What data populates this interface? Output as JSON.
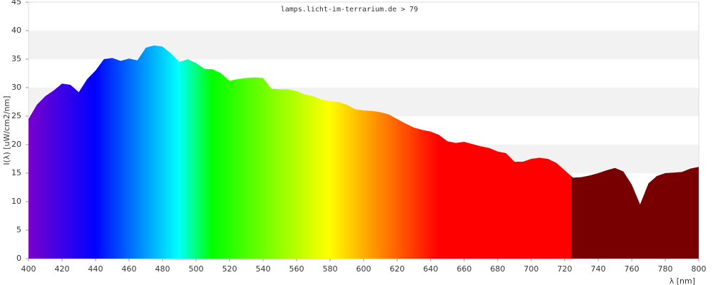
{
  "chart_data": {
    "type": "area",
    "title": "lamps.licht-im-terrarium.de > 79",
    "x_label": "λ [nm]",
    "y_label": "I(λ)  [uW/cm2/nm]",
    "x": [
      400,
      405,
      410,
      415,
      420,
      425,
      430,
      435,
      440,
      445,
      450,
      455,
      460,
      465,
      470,
      475,
      480,
      485,
      490,
      495,
      500,
      505,
      510,
      515,
      520,
      525,
      530,
      535,
      540,
      545,
      550,
      555,
      560,
      565,
      570,
      575,
      580,
      585,
      590,
      595,
      600,
      605,
      610,
      615,
      620,
      625,
      630,
      635,
      640,
      645,
      650,
      655,
      660,
      665,
      670,
      675,
      680,
      685,
      690,
      695,
      700,
      705,
      710,
      715,
      720,
      725,
      730,
      735,
      740,
      745,
      750,
      755,
      760,
      765,
      770,
      775,
      780,
      785,
      790,
      795,
      800
    ],
    "series": [
      {
        "name": "I(λ)",
        "values": [
          24.5,
          27,
          28.5,
          29.5,
          30.7,
          30.5,
          29.2,
          31.5,
          33,
          35,
          35.2,
          34.7,
          35.1,
          34.8,
          37,
          37.4,
          37.2,
          36,
          34.5,
          35,
          34.3,
          33.3,
          33.2,
          32.5,
          31.2,
          31.5,
          31.7,
          31.8,
          31.7,
          29.8,
          29.7,
          29.7,
          29.4,
          28.8,
          28.5,
          27.9,
          27.6,
          27.5,
          27,
          26.2,
          26,
          25.9,
          25.7,
          25.3,
          24.5,
          23.7,
          23,
          22.6,
          22.3,
          21.7,
          20.6,
          20.3,
          20.5,
          20.1,
          19.7,
          19.4,
          18.8,
          18.5,
          17,
          17,
          17.5,
          17.7,
          17.5,
          16.8,
          15.5,
          14.2,
          14.3,
          14.6,
          15,
          15.5,
          15.9,
          15.3,
          13,
          9.5,
          13.2,
          14.5,
          15,
          15.1,
          15.2,
          15.8,
          16.1
        ]
      }
    ],
    "xlim": [
      400,
      800
    ],
    "ylim": [
      0,
      45
    ],
    "xticks": [
      400,
      420,
      440,
      460,
      480,
      500,
      520,
      540,
      560,
      580,
      600,
      620,
      640,
      660,
      680,
      700,
      720,
      740,
      760,
      780,
      800
    ],
    "yticks": [
      0,
      5,
      10,
      15,
      20,
      25,
      30,
      35,
      40,
      45
    ],
    "grid": "bands",
    "fill": "spectrum"
  }
}
